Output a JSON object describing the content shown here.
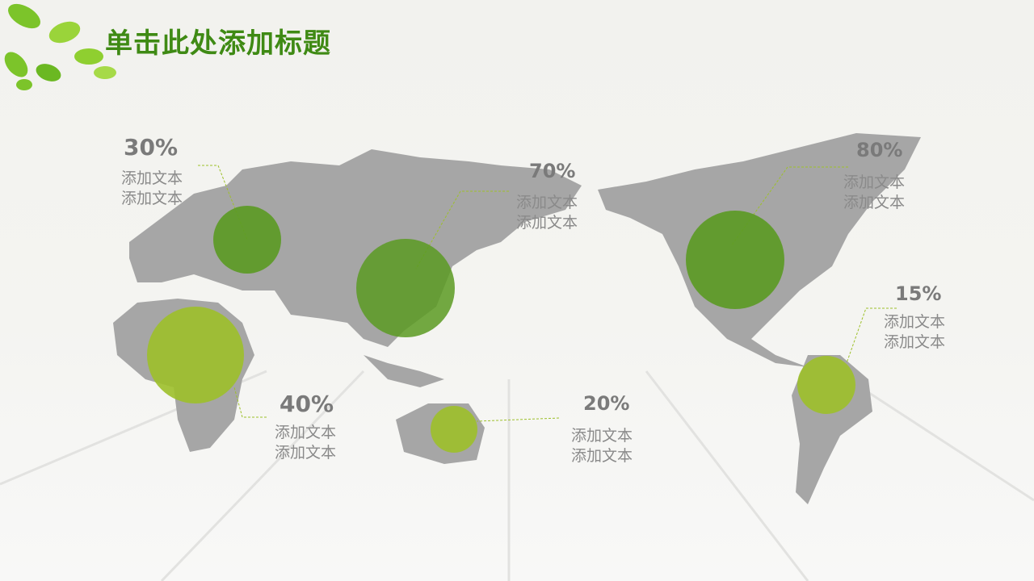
{
  "title": "单击此处添加标题",
  "colors": {
    "title": "#3f8a14",
    "dark_bubble": "#5b9a22",
    "light_bubble": "#9dc02a",
    "land": "#a6a6a6"
  },
  "callouts": [
    {
      "value": "30%",
      "line1": "添加文本",
      "line2": "添加文本",
      "share": 0.3
    },
    {
      "value": "70%",
      "line1": "添加文本",
      "line2": "添加文本",
      "share": 0.7
    },
    {
      "value": "80%",
      "line1": "添加文本",
      "line2": "添加文本",
      "share": 0.8
    },
    {
      "value": "15%",
      "line1": "添加文本",
      "line2": "添加文本",
      "share": 0.15
    },
    {
      "value": "40%",
      "line1": "添加文本",
      "line2": "添加文本",
      "share": 0.4
    },
    {
      "value": "20%",
      "line1": "添加文本",
      "line2": "添加文本",
      "share": 0.2
    }
  ]
}
